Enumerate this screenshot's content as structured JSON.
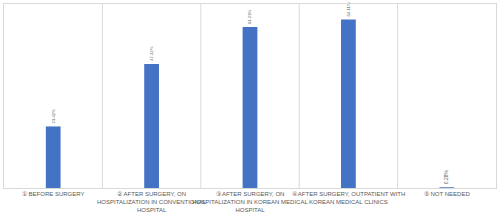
{
  "chart_data": {
    "type": "bar",
    "categories": [
      "① BEFORE SURGERY",
      "② AFTER SURGERY, ON HOSPITALIZATION IN CONVENTIONAL HOSPITAL",
      "③ AFTER SURGERY, ON HOSPITALIZATION IN KOREAN MEDICAL HOSPITAL",
      "④ AFTER SURGERY, OUTPATIENT WITH KOREAN MEDICAL CLINICS",
      "⑤ NOT NEEDED"
    ],
    "values": [
      23.42,
      47.22,
      61.23,
      64.11,
      0.28
    ],
    "value_labels": [
      "23.42%",
      "47.22%",
      "61.23%",
      "64.11%",
      "0.28%"
    ],
    "color": "#4472c4",
    "ylim": [
      0,
      70
    ],
    "grid": false,
    "data_labels": true,
    "tick_labels": "x"
  }
}
